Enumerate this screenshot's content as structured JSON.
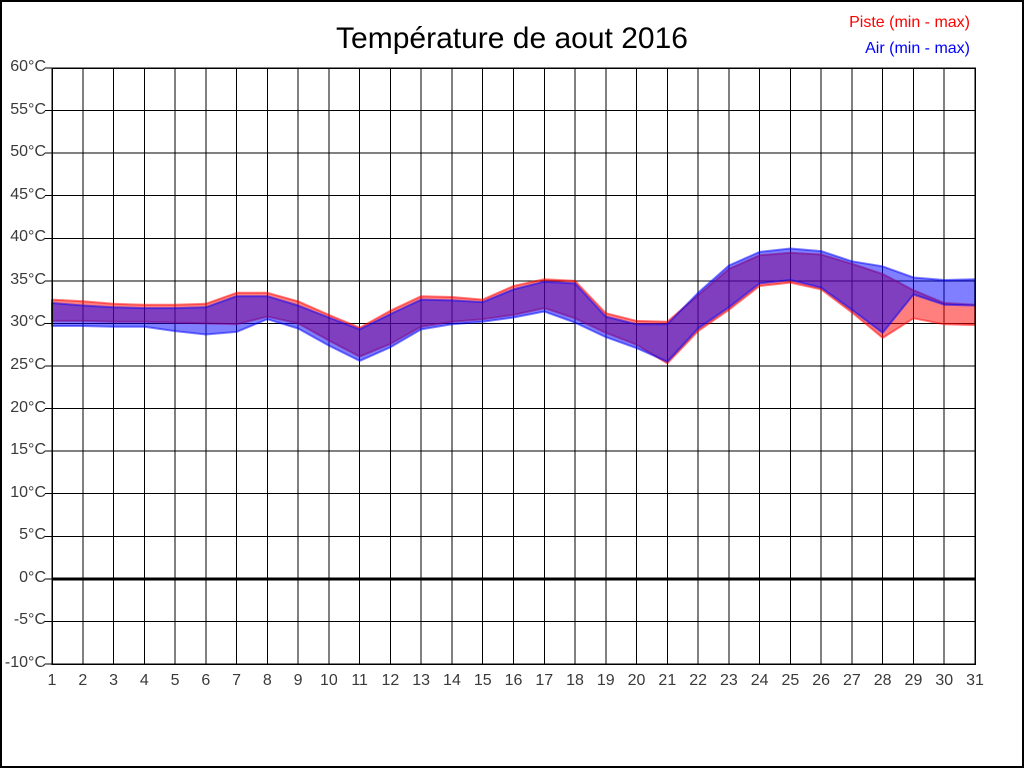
{
  "page": {
    "background": "#ffffff",
    "border_color": "#000000"
  },
  "title": "Température de aout 2016",
  "legend": {
    "position": "top-right",
    "items": [
      {
        "label": "Piste (min - max)",
        "color": "#ff0000"
      },
      {
        "label": "Air (min - max)",
        "color": "#0000ff"
      }
    ]
  },
  "chart_data": {
    "type": "area",
    "title": "Température de aout 2016",
    "xlabel": "",
    "ylabel": "",
    "x": [
      1,
      2,
      3,
      4,
      5,
      6,
      7,
      8,
      9,
      10,
      11,
      12,
      13,
      14,
      15,
      16,
      17,
      18,
      19,
      20,
      21,
      22,
      23,
      24,
      25,
      26,
      27,
      28,
      29,
      30,
      31
    ],
    "xticks": [
      "1",
      "2",
      "3",
      "4",
      "5",
      "6",
      "7",
      "8",
      "9",
      "10",
      "11",
      "12",
      "13",
      "14",
      "15",
      "16",
      "17",
      "18",
      "19",
      "20",
      "21",
      "22",
      "23",
      "24",
      "25",
      "26",
      "27",
      "28",
      "29",
      "30",
      "31"
    ],
    "ylim": [
      -10,
      60
    ],
    "ytick_step": 5,
    "yticks": [
      "60°C",
      "55°C",
      "50°C",
      "45°C",
      "40°C",
      "35°C",
      "30°C",
      "25°C",
      "20°C",
      "15°C",
      "10°C",
      "5°C",
      "0°C",
      "-5°C",
      "-10°C"
    ],
    "ytick_values": [
      60,
      55,
      50,
      45,
      40,
      35,
      30,
      25,
      20,
      15,
      10,
      5,
      0,
      -5,
      -10
    ],
    "grid": true,
    "gridline_color": "#000000",
    "zero_line": {
      "value": 0,
      "width": 3,
      "color": "#000000"
    },
    "legend_position": "top-right",
    "series": [
      {
        "name": "Piste (min - max)",
        "role": "piste",
        "color": "#ff0000",
        "fill": "rgba(255,0,0,0.5)",
        "stroke": "rgba(255,0,0,0.5)",
        "min": [
          30.3,
          30.3,
          30.2,
          30.2,
          30.1,
          30.0,
          29.9,
          30.8,
          30.0,
          28.0,
          26.1,
          27.6,
          29.6,
          30.2,
          30.5,
          31.0,
          31.8,
          30.6,
          28.9,
          27.5,
          25.3,
          29.1,
          31.6,
          34.4,
          34.8,
          34.0,
          31.3,
          28.3,
          30.6,
          29.9,
          29.8
        ],
        "max": [
          32.8,
          32.6,
          32.3,
          32.2,
          32.2,
          32.3,
          33.6,
          33.6,
          32.6,
          31.0,
          29.5,
          31.5,
          33.2,
          33.1,
          32.8,
          34.4,
          35.2,
          35.0,
          31.2,
          30.3,
          30.2,
          33.3,
          36.4,
          38.0,
          38.3,
          38.1,
          37.0,
          35.8,
          33.9,
          32.4,
          32.2
        ]
      },
      {
        "name": "Air (min - max)",
        "role": "air",
        "color": "#0000ff",
        "fill": "rgba(0,0,255,0.5)",
        "stroke": "rgba(0,0,255,0.5)",
        "min": [
          29.7,
          29.7,
          29.6,
          29.6,
          29.1,
          28.7,
          29.0,
          30.5,
          29.4,
          27.4,
          25.6,
          27.2,
          29.3,
          29.9,
          30.2,
          30.7,
          31.4,
          30.1,
          28.4,
          27.1,
          25.5,
          29.4,
          31.9,
          34.7,
          35.1,
          34.2,
          31.6,
          28.9,
          33.4,
          32.2,
          32.1
        ],
        "max": [
          32.4,
          32.1,
          31.9,
          31.8,
          31.8,
          31.9,
          33.2,
          33.2,
          32.1,
          30.7,
          29.3,
          31.1,
          32.8,
          32.7,
          32.5,
          34.0,
          34.9,
          34.7,
          30.8,
          29.9,
          29.9,
          33.6,
          36.8,
          38.4,
          38.8,
          38.5,
          37.3,
          36.7,
          35.4,
          35.1,
          35.2
        ]
      }
    ]
  }
}
